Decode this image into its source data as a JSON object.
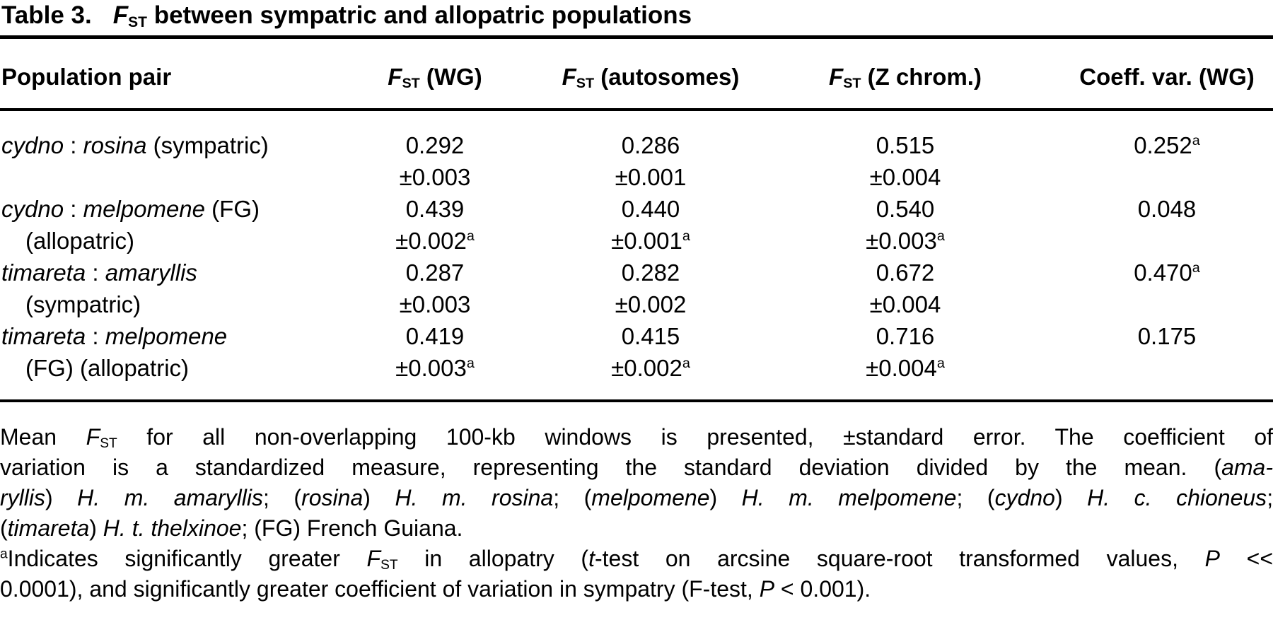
{
  "colors": {
    "text": "#000000",
    "background": "#ffffff",
    "rule": "#000000"
  },
  "title": {
    "label": "Table 3.",
    "caption_segments": [
      {
        "t": "F",
        "i": true
      },
      {
        "t": "ST",
        "sub": true
      },
      {
        "t": " between sympatric and allopatric populations"
      }
    ]
  },
  "table": {
    "columns": [
      {
        "segments": [
          {
            "t": "Population pair"
          }
        ]
      },
      {
        "segments": [
          {
            "t": "F",
            "i": true
          },
          {
            "t": "ST",
            "sub": true
          },
          {
            "t": " (WG)"
          }
        ]
      },
      {
        "segments": [
          {
            "t": "F",
            "i": true
          },
          {
            "t": "ST",
            "sub": true
          },
          {
            "t": " (autosomes)"
          }
        ]
      },
      {
        "segments": [
          {
            "t": "F",
            "i": true
          },
          {
            "t": "ST",
            "sub": true
          },
          {
            "t": " (Z chrom.)"
          }
        ]
      },
      {
        "segments": [
          {
            "t": "Coeff. var. (WG)"
          }
        ]
      }
    ],
    "rows": [
      {
        "pair_line1": [
          {
            "t": "cydno",
            "i": true
          },
          {
            "t": " : "
          },
          {
            "t": "rosina",
            "i": true
          },
          {
            "t": " (sympatric)"
          }
        ],
        "pair_line2": [],
        "cells": [
          {
            "value": [
              {
                "t": "0.292"
              }
            ],
            "error": [
              {
                "t": "±0.003"
              }
            ]
          },
          {
            "value": [
              {
                "t": "0.286"
              }
            ],
            "error": [
              {
                "t": "±0.001"
              }
            ]
          },
          {
            "value": [
              {
                "t": "0.515"
              }
            ],
            "error": [
              {
                "t": "±0.004"
              }
            ]
          },
          {
            "value": [
              {
                "t": "0.252"
              },
              {
                "t": "a",
                "sup": true
              }
            ],
            "error": []
          }
        ]
      },
      {
        "pair_line1": [
          {
            "t": "cydno",
            "i": true
          },
          {
            "t": " : "
          },
          {
            "t": "melpomene",
            "i": true
          },
          {
            "t": " (FG)"
          }
        ],
        "pair_line2": [
          {
            "t": "(allopatric)"
          }
        ],
        "cells": [
          {
            "value": [
              {
                "t": "0.439"
              }
            ],
            "error": [
              {
                "t": "±0.002"
              },
              {
                "t": "a",
                "sup": true
              }
            ]
          },
          {
            "value": [
              {
                "t": "0.440"
              }
            ],
            "error": [
              {
                "t": "±0.001"
              },
              {
                "t": "a",
                "sup": true
              }
            ]
          },
          {
            "value": [
              {
                "t": "0.540"
              }
            ],
            "error": [
              {
                "t": "±0.003"
              },
              {
                "t": "a",
                "sup": true
              }
            ]
          },
          {
            "value": [
              {
                "t": "0.048"
              }
            ],
            "error": []
          }
        ]
      },
      {
        "pair_line1": [
          {
            "t": "timareta",
            "i": true
          },
          {
            "t": " : "
          },
          {
            "t": "amaryllis",
            "i": true
          }
        ],
        "pair_line2": [
          {
            "t": "(sympatric)"
          }
        ],
        "cells": [
          {
            "value": [
              {
                "t": "0.287"
              }
            ],
            "error": [
              {
                "t": "±0.003"
              }
            ]
          },
          {
            "value": [
              {
                "t": "0.282"
              }
            ],
            "error": [
              {
                "t": "±0.002"
              }
            ]
          },
          {
            "value": [
              {
                "t": "0.672"
              }
            ],
            "error": [
              {
                "t": "±0.004"
              }
            ]
          },
          {
            "value": [
              {
                "t": "0.470"
              },
              {
                "t": "a",
                "sup": true
              }
            ],
            "error": []
          }
        ]
      },
      {
        "pair_line1": [
          {
            "t": "timareta",
            "i": true
          },
          {
            "t": " : "
          },
          {
            "t": "melpomene",
            "i": true
          }
        ],
        "pair_line2": [
          {
            "t": "(FG) (allopatric)"
          }
        ],
        "cells": [
          {
            "value": [
              {
                "t": "0.419"
              }
            ],
            "error": [
              {
                "t": "±0.003"
              },
              {
                "t": "a",
                "sup": true
              }
            ]
          },
          {
            "value": [
              {
                "t": "0.415"
              }
            ],
            "error": [
              {
                "t": "±0.002"
              },
              {
                "t": "a",
                "sup": true
              }
            ]
          },
          {
            "value": [
              {
                "t": "0.716"
              }
            ],
            "error": [
              {
                "t": "±0.004"
              },
              {
                "t": "a",
                "sup": true
              }
            ]
          },
          {
            "value": [
              {
                "t": "0.175"
              }
            ],
            "error": []
          }
        ]
      }
    ]
  },
  "footnote_lines": [
    {
      "justify": true,
      "segments": [
        {
          "t": "Mean "
        },
        {
          "t": "F",
          "i": true
        },
        {
          "t": "ST",
          "sub": true
        },
        {
          "t": " for all non-overlapping 100-kb windows is presented, ±standard error. The coefficient of"
        }
      ]
    },
    {
      "justify": true,
      "segments": [
        {
          "t": "variation is a standardized measure, representing the standard deviation divided by the mean. ("
        },
        {
          "t": "ama-",
          "i": true
        }
      ]
    },
    {
      "justify": true,
      "segments": [
        {
          "t": "ryllis",
          "i": true
        },
        {
          "t": ") "
        },
        {
          "t": "H. m. amaryllis",
          "i": true
        },
        {
          "t": "; ("
        },
        {
          "t": "rosina",
          "i": true
        },
        {
          "t": ") "
        },
        {
          "t": "H. m. rosina",
          "i": true
        },
        {
          "t": "; ("
        },
        {
          "t": "melpomene",
          "i": true
        },
        {
          "t": ") "
        },
        {
          "t": "H. m. melpomene",
          "i": true
        },
        {
          "t": "; ("
        },
        {
          "t": "cydno",
          "i": true
        },
        {
          "t": ") "
        },
        {
          "t": "H. c. chioneus",
          "i": true
        },
        {
          "t": ";"
        }
      ]
    },
    {
      "justify": false,
      "segments": [
        {
          "t": "("
        },
        {
          "t": "timareta",
          "i": true
        },
        {
          "t": ") "
        },
        {
          "t": "H. t. thelxinoe",
          "i": true
        },
        {
          "t": "; (FG) French Guiana."
        }
      ]
    },
    {
      "justify": true,
      "segments": [
        {
          "t": "a",
          "sup": true
        },
        {
          "t": "Indicates significantly greater "
        },
        {
          "t": "F",
          "i": true
        },
        {
          "t": "ST",
          "sub": true
        },
        {
          "t": " in allopatry ("
        },
        {
          "t": "t",
          "i": true
        },
        {
          "t": "-test on arcsine square-root transformed values, "
        },
        {
          "t": "P",
          "i": true
        },
        {
          "t": " <<"
        }
      ]
    },
    {
      "justify": false,
      "segments": [
        {
          "t": "0.0001), and significantly greater coefficient of variation in sympatry (F-test, "
        },
        {
          "t": "P",
          "i": true
        },
        {
          "t": " < 0.001)."
        }
      ]
    }
  ],
  "chart_data": {
    "type": "table",
    "title": "Table 3. FST between sympatric and allopatric populations",
    "columns": [
      "Population pair",
      "FST (WG)",
      "FST (autosomes)",
      "FST (Z chrom.)",
      "Coeff. var. (WG)"
    ],
    "rows": [
      [
        "cydno : rosina (sympatric)",
        "0.292 ±0.003",
        "0.286 ±0.001",
        "0.515 ±0.004",
        "0.252a"
      ],
      [
        "cydno : melpomene (FG) (allopatric)",
        "0.439 ±0.002a",
        "0.440 ±0.001a",
        "0.540 ±0.003a",
        "0.048"
      ],
      [
        "timareta : amaryllis (sympatric)",
        "0.287 ±0.003",
        "0.282 ±0.002",
        "0.672 ±0.004",
        "0.470a"
      ],
      [
        "timareta : melpomene (FG) (allopatric)",
        "0.419 ±0.003a",
        "0.415 ±0.002a",
        "0.716 ±0.004a",
        "0.175"
      ]
    ]
  }
}
